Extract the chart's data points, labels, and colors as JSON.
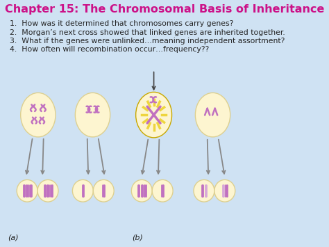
{
  "title": "Chapter 15: The Chromosomal Basis of Inheritance",
  "title_color": "#cc1188",
  "title_fontsize": 11.5,
  "bg_color": "#cfe2f3",
  "text_color": "#222222",
  "bullet_points": [
    "How was it determined that chromosomes carry genes?",
    "Morgan’s next cross showed that linked genes are inherited together.",
    "What if the genes were unlinked…meaning independent assortment?",
    "How often will recombination occur…frequency??"
  ],
  "bullet_fontsize": 7.8,
  "label_a": "(a)",
  "label_b": "(b)",
  "label_fontsize": 8,
  "cell_bg": "#fdf5d0",
  "cell_border": "#ddd090",
  "chrom_color": "#c070c0",
  "chrom_light": "#d8a8d8",
  "arrow_color": "#888888"
}
